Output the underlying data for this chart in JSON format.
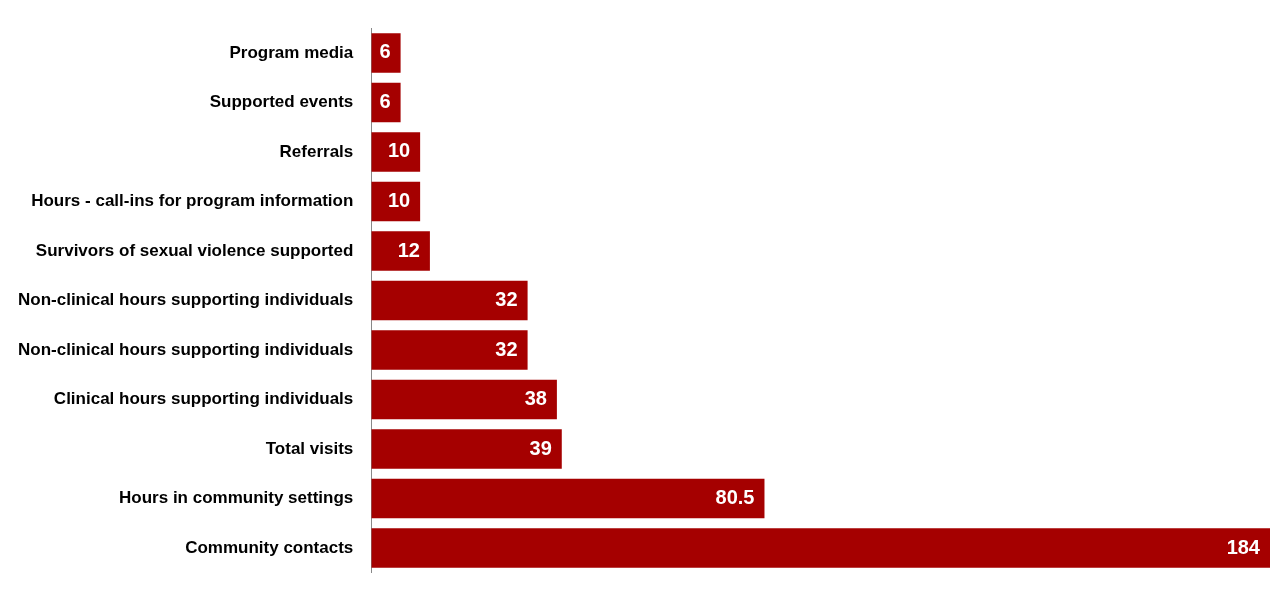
{
  "chart_data": {
    "type": "bar",
    "orientation": "horizontal",
    "data_labels": true,
    "grid": false,
    "legend": false,
    "tick_labels": "y",
    "categories": [
      "Program media",
      "Supported events",
      "Referrals",
      "Hours - call-ins for program information",
      "Survivors of sexual violence supported",
      "Non-clinical hours supporting individuals",
      "Non-clinical hours supporting individuals",
      "Clinical hours supporting individuals",
      "Total visits",
      "Hours in community settings",
      "Community contacts"
    ],
    "values": [
      6,
      6,
      10,
      10,
      12,
      32,
      32,
      38,
      39,
      80.5,
      184
    ],
    "color": "#a50000"
  }
}
